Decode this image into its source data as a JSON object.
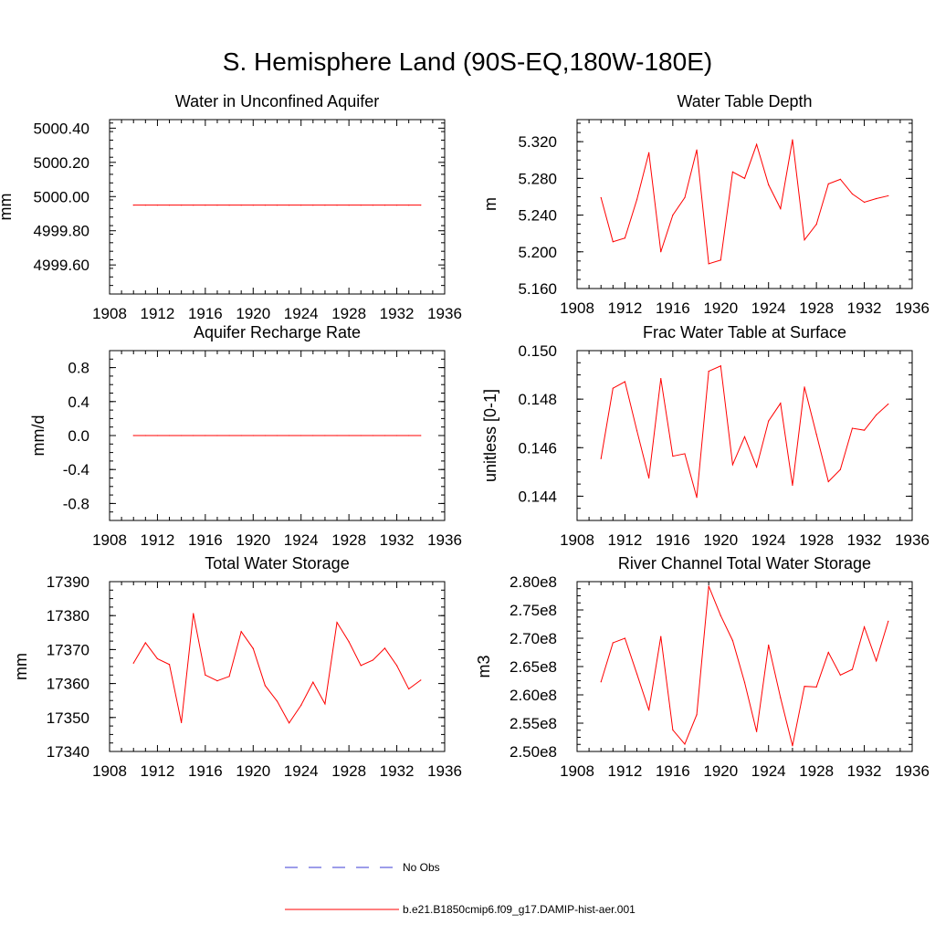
{
  "title": "S. Hemisphere Land (90S-EQ,180W-180E)",
  "colors": {
    "series": "#ff0000",
    "obs": "#3b3bd6",
    "axis": "#000000"
  },
  "legend": [
    {
      "label": "No Obs",
      "color": "#3b3bd6",
      "style": "dashed"
    },
    {
      "label": "b.e21.B1850cmip6.f09_g17.DAMIP-hist-aer.001",
      "color": "#ff0000",
      "style": "solid"
    }
  ],
  "chart_data": [
    {
      "type": "line",
      "title": "Water in Unconfined Aquifer",
      "xlabel": "",
      "ylabel": "mm",
      "xlim": [
        1908,
        1936
      ],
      "xticks": [
        1908,
        1912,
        1916,
        1920,
        1924,
        1928,
        1932,
        1936
      ],
      "ylim": [
        4999.43,
        5000.45
      ],
      "yticks": [
        4999.6,
        4999.8,
        5000.0,
        5000.2,
        5000.4
      ],
      "ytick_labels": [
        "4999.60",
        "4999.80",
        "5000.00",
        "5000.20",
        "5000.40"
      ],
      "x": [
        1910,
        1911,
        1912,
        1913,
        1914,
        1915,
        1916,
        1917,
        1918,
        1919,
        1920,
        1921,
        1922,
        1923,
        1924,
        1925,
        1926,
        1927,
        1928,
        1929,
        1930,
        1931,
        1932,
        1933,
        1934
      ],
      "series": [
        {
          "name": "b.e21.B1850cmip6.f09_g17.DAMIP-hist-aer.001",
          "values": [
            4999.95,
            4999.95,
            4999.95,
            4999.95,
            4999.95,
            4999.95,
            4999.95,
            4999.95,
            4999.95,
            4999.95,
            4999.95,
            4999.95,
            4999.95,
            4999.95,
            4999.95,
            4999.95,
            4999.95,
            4999.95,
            4999.95,
            4999.95,
            4999.95,
            4999.95,
            4999.95,
            4999.95,
            4999.95
          ]
        }
      ]
    },
    {
      "type": "line",
      "title": "Water Table Depth",
      "xlabel": "",
      "ylabel": "m",
      "xlim": [
        1908,
        1936
      ],
      "xticks": [
        1908,
        1912,
        1916,
        1920,
        1924,
        1928,
        1932,
        1936
      ],
      "ylim": [
        5.16,
        5.344
      ],
      "yticks": [
        5.16,
        5.2,
        5.24,
        5.28,
        5.32
      ],
      "ytick_labels": [
        "5.160",
        "5.200",
        "5.240",
        "5.280",
        "5.320"
      ],
      "x": [
        1910,
        1911,
        1912,
        1913,
        1914,
        1915,
        1916,
        1917,
        1918,
        1919,
        1920,
        1921,
        1922,
        1923,
        1924,
        1925,
        1926,
        1927,
        1928,
        1929,
        1930,
        1931,
        1932,
        1933,
        1934
      ],
      "series": [
        {
          "name": "b.e21.B1850cmip6.f09_g17.DAMIP-hist-aer.001",
          "values": [
            5.259,
            5.211,
            5.215,
            5.257,
            5.308,
            5.2,
            5.24,
            5.259,
            5.311,
            5.187,
            5.191,
            5.287,
            5.28,
            5.317,
            5.273,
            5.247,
            5.322,
            5.213,
            5.23,
            5.274,
            5.279,
            5.263,
            5.254,
            5.258,
            5.261
          ]
        }
      ]
    },
    {
      "type": "line",
      "title": "Aquifer Recharge Rate",
      "xlabel": "",
      "ylabel": "mm/d",
      "xlim": [
        1908,
        1936
      ],
      "xticks": [
        1908,
        1912,
        1916,
        1920,
        1924,
        1928,
        1932,
        1936
      ],
      "ylim": [
        -1.0,
        1.0
      ],
      "yticks": [
        -0.8,
        -0.4,
        0.0,
        0.4,
        0.8
      ],
      "ytick_labels": [
        "-0.8",
        "-0.4",
        "0.0",
        "0.4",
        "0.8"
      ],
      "x": [
        1910,
        1911,
        1912,
        1913,
        1914,
        1915,
        1916,
        1917,
        1918,
        1919,
        1920,
        1921,
        1922,
        1923,
        1924,
        1925,
        1926,
        1927,
        1928,
        1929,
        1930,
        1931,
        1932,
        1933,
        1934
      ],
      "series": [
        {
          "name": "b.e21.B1850cmip6.f09_g17.DAMIP-hist-aer.001",
          "values": [
            0,
            0,
            0,
            0,
            0,
            0,
            0,
            0,
            0,
            0,
            0,
            0,
            0,
            0,
            0,
            0,
            0,
            0,
            0,
            0,
            0,
            0,
            0,
            0,
            0
          ]
        }
      ]
    },
    {
      "type": "line",
      "title": "Frac Water Table at Surface",
      "xlabel": "",
      "ylabel": "unitless [0-1]",
      "xlim": [
        1908,
        1936
      ],
      "xticks": [
        1908,
        1912,
        1916,
        1920,
        1924,
        1928,
        1932,
        1936
      ],
      "ylim": [
        0.143,
        0.15
      ],
      "yticks": [
        0.144,
        0.146,
        0.148,
        0.15
      ],
      "ytick_labels": [
        "0.144",
        "0.146",
        "0.148",
        "0.150"
      ],
      "x": [
        1910,
        1911,
        1912,
        1913,
        1914,
        1915,
        1916,
        1917,
        1918,
        1919,
        1920,
        1921,
        1922,
        1923,
        1924,
        1925,
        1926,
        1927,
        1928,
        1929,
        1930,
        1931,
        1932,
        1933,
        1934
      ],
      "series": [
        {
          "name": "b.e21.B1850cmip6.f09_g17.DAMIP-hist-aer.001",
          "values": [
            0.14555,
            0.14845,
            0.14872,
            0.1467,
            0.14475,
            0.14885,
            0.14565,
            0.14575,
            0.14395,
            0.14915,
            0.14937,
            0.1453,
            0.14645,
            0.1452,
            0.1471,
            0.14783,
            0.14445,
            0.1485,
            0.14655,
            0.1446,
            0.1451,
            0.1468,
            0.14672,
            0.14735,
            0.1478
          ]
        }
      ]
    },
    {
      "type": "line",
      "title": "Total Water Storage",
      "xlabel": "",
      "ylabel": "mm",
      "xlim": [
        1908,
        1936
      ],
      "xticks": [
        1908,
        1912,
        1916,
        1920,
        1924,
        1928,
        1932,
        1936
      ],
      "ylim": [
        17340,
        17390
      ],
      "yticks": [
        17340,
        17350,
        17360,
        17370,
        17380,
        17390
      ],
      "ytick_labels": [
        "17340",
        "17350",
        "17360",
        "17370",
        "17380",
        "17390"
      ],
      "x": [
        1910,
        1911,
        1912,
        1913,
        1914,
        1915,
        1916,
        1917,
        1918,
        1919,
        1920,
        1921,
        1922,
        1923,
        1924,
        1925,
        1926,
        1927,
        1928,
        1929,
        1930,
        1931,
        1932,
        1933,
        1934
      ],
      "series": [
        {
          "name": "b.e21.B1850cmip6.f09_g17.DAMIP-hist-aer.001",
          "values": [
            17366,
            17372,
            17367.3,
            17365.6,
            17348.5,
            17380.6,
            17362.5,
            17360.8,
            17362.1,
            17375.3,
            17370.3,
            17359.4,
            17354.8,
            17348.4,
            17353.6,
            17360.4,
            17354,
            17378,
            17372.3,
            17365.3,
            17366.9,
            17370.4,
            17365.3,
            17358.4,
            17361
          ]
        }
      ]
    },
    {
      "type": "line",
      "title": "River Channel Total Water Storage",
      "xlabel": "",
      "ylabel": "m3",
      "xlim": [
        1908,
        1936
      ],
      "xticks": [
        1908,
        1912,
        1916,
        1920,
        1924,
        1928,
        1932,
        1936
      ],
      "ylim": [
        250000000.0,
        280000000.0
      ],
      "yticks": [
        250000000.0,
        255000000.0,
        260000000.0,
        265000000.0,
        270000000.0,
        275000000.0,
        280000000.0
      ],
      "ytick_labels": [
        "2.50e8",
        "2.55e8",
        "2.60e8",
        "2.65e8",
        "2.70e8",
        "2.75e8",
        "2.80e8"
      ],
      "x": [
        1910,
        1911,
        1912,
        1913,
        1914,
        1915,
        1916,
        1917,
        1918,
        1919,
        1920,
        1921,
        1922,
        1923,
        1924,
        1925,
        1926,
        1927,
        1928,
        1929,
        1930,
        1931,
        1932,
        1933,
        1934
      ],
      "series": [
        {
          "name": "b.e21.B1850cmip6.f09_g17.DAMIP-hist-aer.001",
          "values": [
            262300000.0,
            269200000.0,
            270000000.0,
            263700000.0,
            257300000.0,
            270300000.0,
            253800000.0,
            251300000.0,
            256500000.0,
            279200000.0,
            274000000.0,
            269600000.0,
            262200000.0,
            253500000.0,
            268800000.0,
            259500000.0,
            251000000.0,
            261500000.0,
            261400000.0,
            267500000.0,
            263500000.0,
            264500000.0,
            272000000.0,
            266000000.0,
            273000000.0
          ]
        }
      ]
    }
  ]
}
